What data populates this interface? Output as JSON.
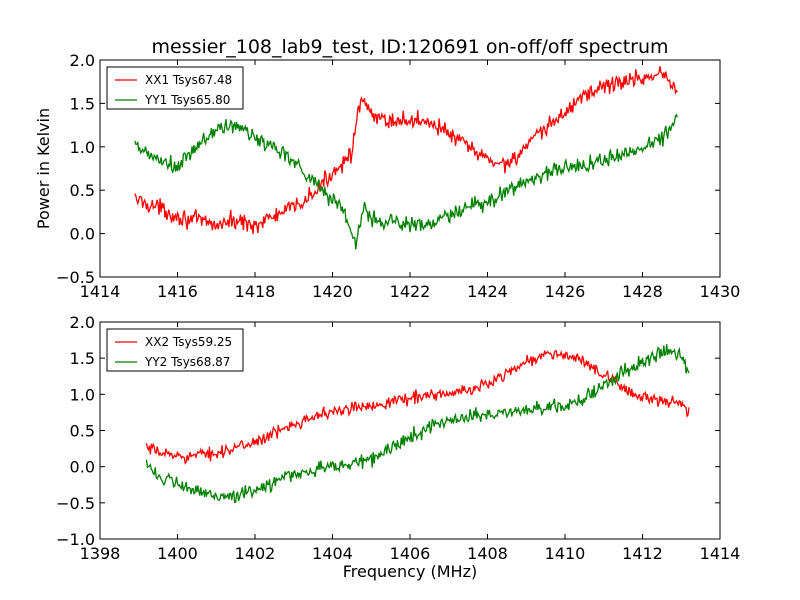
{
  "title": "messier_108_lab9_test, ID:120691 on-off/off spectrum",
  "chart_data": [
    {
      "type": "line",
      "title": "messier_108_lab9_test, ID:120691 on-off/off spectrum",
      "xlabel": "",
      "ylabel": "Power in Kelvin",
      "xlim": [
        1414,
        1430
      ],
      "ylim": [
        -0.5,
        2.0
      ],
      "xticks": [
        "1414",
        "1416",
        "1418",
        "1420",
        "1422",
        "1424",
        "1426",
        "1428",
        "1430"
      ],
      "yticks": [
        "−0.5",
        "0.0",
        "0.5",
        "1.0",
        "1.5",
        "2.0"
      ],
      "legend_position": "top-left",
      "series": [
        {
          "name": "XX1 Tsys67.48",
          "color": "#ff0000",
          "x": [
            1414.9,
            1415.5,
            1416.0,
            1416.5,
            1417.0,
            1417.5,
            1418.0,
            1418.5,
            1419.0,
            1419.5,
            1420.0,
            1420.3,
            1420.5,
            1420.65,
            1420.8,
            1421.0,
            1421.5,
            1422.0,
            1422.5,
            1423.0,
            1423.5,
            1424.0,
            1424.5,
            1425.0,
            1425.5,
            1426.0,
            1426.5,
            1427.0,
            1427.5,
            1428.0,
            1428.5,
            1428.9
          ],
          "y": [
            0.4,
            0.3,
            0.2,
            0.15,
            0.1,
            0.15,
            0.1,
            0.2,
            0.3,
            0.45,
            0.7,
            0.85,
            0.95,
            1.35,
            1.55,
            1.35,
            1.3,
            1.3,
            1.3,
            1.15,
            1.0,
            0.85,
            0.8,
            1.0,
            1.2,
            1.4,
            1.6,
            1.7,
            1.75,
            1.8,
            1.85,
            1.65
          ],
          "noise": 0.07
        },
        {
          "name": "YY1 Tsys65.80",
          "color": "#008000",
          "x": [
            1414.9,
            1415.5,
            1416.0,
            1416.5,
            1417.0,
            1417.5,
            1418.0,
            1418.5,
            1419.0,
            1419.5,
            1420.0,
            1420.3,
            1420.5,
            1420.6,
            1420.8,
            1421.0,
            1421.5,
            1422.0,
            1422.5,
            1423.0,
            1423.5,
            1424.0,
            1424.5,
            1425.0,
            1425.5,
            1426.0,
            1426.5,
            1427.0,
            1427.5,
            1428.0,
            1428.5,
            1428.9
          ],
          "y": [
            1.0,
            0.85,
            0.75,
            1.0,
            1.2,
            1.25,
            1.1,
            1.0,
            0.85,
            0.6,
            0.4,
            0.25,
            0.0,
            -0.1,
            0.3,
            0.15,
            0.15,
            0.1,
            0.1,
            0.2,
            0.3,
            0.35,
            0.5,
            0.6,
            0.7,
            0.75,
            0.8,
            0.85,
            0.9,
            1.0,
            1.1,
            1.35
          ],
          "noise": 0.07
        }
      ]
    },
    {
      "type": "line",
      "title": "",
      "xlabel": "Frequency (MHz)",
      "ylabel": "",
      "xlim": [
        1398,
        1414
      ],
      "ylim": [
        -1.0,
        2.0
      ],
      "xticks": [
        "1398",
        "1400",
        "1402",
        "1404",
        "1406",
        "1408",
        "1410",
        "1412",
        "1414"
      ],
      "yticks": [
        "−1.0",
        "−0.5",
        "0.0",
        "0.5",
        "1.0",
        "1.5",
        "2.0"
      ],
      "legend_position": "top-left",
      "series": [
        {
          "name": "XX2 Tsys59.25",
          "color": "#ff0000",
          "x": [
            1399.2,
            1399.5,
            1400.0,
            1400.5,
            1401.0,
            1401.5,
            1402.0,
            1402.5,
            1403.0,
            1403.5,
            1404.0,
            1404.5,
            1405.0,
            1405.5,
            1406.0,
            1406.5,
            1407.0,
            1407.5,
            1408.0,
            1408.5,
            1409.0,
            1409.5,
            1410.0,
            1410.5,
            1411.0,
            1411.5,
            1412.0,
            1412.5,
            1413.0,
            1413.2
          ],
          "y": [
            0.25,
            0.2,
            0.15,
            0.15,
            0.2,
            0.25,
            0.35,
            0.45,
            0.6,
            0.7,
            0.75,
            0.8,
            0.85,
            0.9,
            0.95,
            1.0,
            1.0,
            1.05,
            1.15,
            1.3,
            1.45,
            1.55,
            1.55,
            1.45,
            1.25,
            1.1,
            0.95,
            0.9,
            0.85,
            0.75
          ],
          "noise": 0.06
        },
        {
          "name": "YY2 Tsys68.87",
          "color": "#008000",
          "x": [
            1399.2,
            1399.5,
            1400.0,
            1400.5,
            1401.0,
            1401.5,
            1402.0,
            1402.5,
            1403.0,
            1403.5,
            1404.0,
            1404.5,
            1405.0,
            1405.5,
            1406.0,
            1406.5,
            1407.0,
            1407.5,
            1408.0,
            1408.5,
            1409.0,
            1409.5,
            1410.0,
            1410.5,
            1411.0,
            1411.5,
            1412.0,
            1412.5,
            1413.0,
            1413.2
          ],
          "y": [
            0.1,
            -0.15,
            -0.25,
            -0.35,
            -0.4,
            -0.4,
            -0.35,
            -0.2,
            -0.1,
            -0.05,
            0.0,
            0.05,
            0.1,
            0.25,
            0.4,
            0.55,
            0.65,
            0.7,
            0.7,
            0.75,
            0.8,
            0.8,
            0.85,
            0.95,
            1.1,
            1.3,
            1.45,
            1.6,
            1.55,
            1.3
          ],
          "noise": 0.07
        }
      ]
    }
  ]
}
